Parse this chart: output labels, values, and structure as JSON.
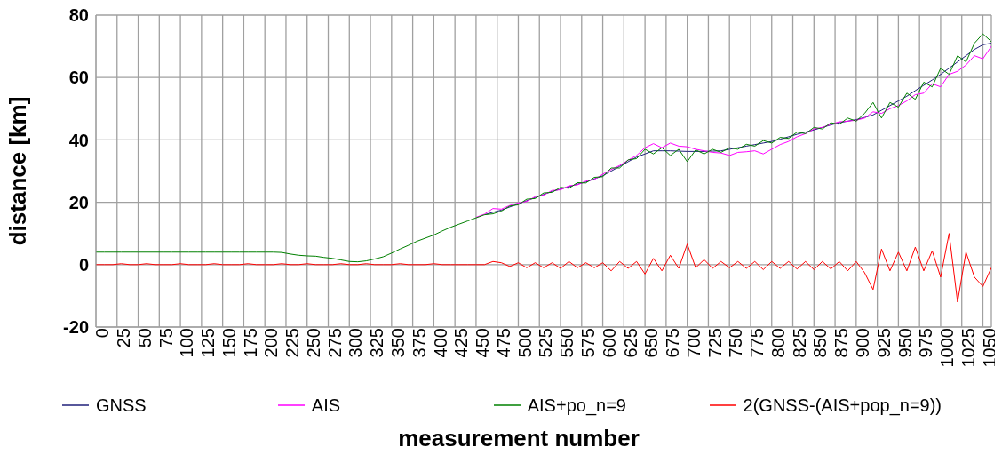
{
  "chart_data": {
    "type": "line",
    "xlabel": "measurement number",
    "ylabel": "distance [km]",
    "x": [
      0,
      10,
      20,
      30,
      40,
      50,
      60,
      70,
      80,
      90,
      100,
      110,
      120,
      130,
      140,
      150,
      160,
      170,
      180,
      190,
      200,
      210,
      220,
      230,
      240,
      250,
      260,
      270,
      280,
      290,
      300,
      310,
      320,
      330,
      340,
      350,
      360,
      370,
      380,
      390,
      400,
      410,
      420,
      430,
      440,
      450,
      460,
      470,
      480,
      490,
      500,
      510,
      520,
      530,
      540,
      550,
      560,
      570,
      580,
      590,
      600,
      610,
      620,
      630,
      640,
      650,
      660,
      670,
      680,
      690,
      700,
      710,
      720,
      730,
      740,
      750,
      760,
      770,
      780,
      790,
      800,
      810,
      820,
      830,
      840,
      850,
      860,
      870,
      880,
      890,
      900,
      910,
      920,
      930,
      940,
      950,
      960,
      970,
      980,
      990,
      1000,
      1010,
      1020,
      1030,
      1040,
      1050,
      1060
    ],
    "series": [
      {
        "name": "GNSS",
        "color": "#1f1f7a",
        "values": [
          null,
          null,
          null,
          null,
          null,
          null,
          null,
          null,
          null,
          null,
          null,
          null,
          null,
          null,
          null,
          null,
          null,
          null,
          null,
          null,
          null,
          null,
          null,
          null,
          null,
          null,
          null,
          null,
          null,
          null,
          null,
          null,
          null,
          null,
          null,
          null,
          null,
          null,
          null,
          null,
          null,
          null,
          null,
          null,
          null,
          null,
          16,
          16.8,
          17.5,
          18.5,
          19.5,
          20.5,
          21.5,
          22.5,
          23.5,
          24.2,
          25,
          25.8,
          26.5,
          27.5,
          28.5,
          30,
          31.5,
          33,
          34.5,
          35.5,
          36.5,
          36.5,
          36.5,
          36.4,
          36.3,
          36.3,
          36.3,
          36.4,
          36.5,
          37,
          37.5,
          38,
          38.5,
          39,
          39.5,
          40.2,
          41,
          41.8,
          42.5,
          43.2,
          44,
          44.8,
          45.5,
          46,
          46.5,
          47.2,
          48,
          49.5,
          51,
          52.5,
          54,
          55.8,
          57.5,
          59.2,
          61,
          63,
          65,
          67,
          69,
          70.5,
          71
        ]
      },
      {
        "name": "AIS",
        "color": "#ff00ff",
        "values": [
          null,
          null,
          null,
          null,
          null,
          null,
          null,
          null,
          null,
          null,
          null,
          null,
          null,
          null,
          null,
          null,
          null,
          null,
          null,
          null,
          null,
          null,
          null,
          null,
          null,
          null,
          null,
          null,
          null,
          null,
          null,
          null,
          null,
          null,
          null,
          null,
          null,
          null,
          null,
          null,
          null,
          null,
          null,
          null,
          null,
          15.2,
          16.2,
          18,
          17.8,
          19,
          19.8,
          20.3,
          21.8,
          22.3,
          23.8,
          24,
          25.3,
          25.6,
          26.8,
          27.3,
          29,
          30.5,
          31.8,
          33.5,
          35,
          37.5,
          38.8,
          37.5,
          39,
          38,
          37.8,
          37,
          36.5,
          36,
          35.8,
          35,
          36,
          36.2,
          36.5,
          35.5,
          37,
          38.5,
          39.5,
          41,
          42,
          43.5,
          44,
          45,
          45.8,
          46,
          46.3,
          47,
          49,
          48.5,
          50,
          51,
          52.5,
          54.5,
          55,
          58,
          57,
          61,
          62,
          64,
          67,
          66,
          70
        ]
      },
      {
        "name": "AIS+po_n=9",
        "color": "#008000",
        "values": [
          4,
          4,
          4,
          4,
          4,
          4,
          4,
          4,
          4,
          4,
          4,
          4,
          4,
          4,
          4,
          4,
          4,
          4,
          4,
          4,
          4,
          4,
          3.9,
          3.4,
          3,
          2.8,
          2.7,
          2.3,
          2,
          1.5,
          1,
          0.9,
          1.2,
          1.8,
          2.5,
          3.7,
          5,
          6.2,
          7.5,
          8.5,
          9.5,
          10.8,
          12,
          13,
          14,
          15,
          16,
          16.3,
          17.2,
          18.8,
          19.2,
          21,
          21.2,
          23,
          23.2,
          24.8,
          24.5,
          26.3,
          26.2,
          28,
          28.2,
          31,
          31,
          33.6,
          34,
          37,
          35.5,
          37.5,
          35,
          37,
          33,
          36.8,
          35.5,
          37,
          36,
          37.5,
          37,
          38.6,
          38,
          39.8,
          39,
          40.8,
          40.5,
          42.5,
          42,
          44,
          43.5,
          45.5,
          45,
          47,
          46,
          48.5,
          52,
          47,
          52,
          50.5,
          55,
          53,
          58.5,
          57,
          63,
          61,
          67,
          65,
          71,
          74,
          71.5
        ]
      },
      {
        "name": "2(GNSS-(AIS+pop_n=9))",
        "color": "#ff0000",
        "values": [
          0,
          0,
          0,
          0.3,
          0,
          0,
          0.3,
          0,
          0,
          0,
          0.3,
          0,
          0,
          0,
          0.3,
          0,
          0,
          0,
          0.3,
          0,
          0,
          0,
          0.3,
          0,
          0,
          0.3,
          0,
          0,
          0,
          0.3,
          0,
          0,
          0.3,
          0,
          0,
          0,
          0.3,
          0,
          0,
          0,
          0.3,
          0,
          0,
          0,
          0,
          0,
          0,
          1,
          0.6,
          -0.6,
          0.6,
          -1,
          0.6,
          -1,
          0.6,
          -1.2,
          1,
          -1,
          0.6,
          -1,
          0.6,
          -2,
          1,
          -1.2,
          1,
          -3,
          2,
          -2,
          3,
          -1.2,
          6.6,
          -1,
          1.6,
          -1.2,
          1,
          -1,
          1,
          -1.2,
          1,
          -1.6,
          1,
          -1.2,
          1,
          -1.4,
          1,
          -1.6,
          1,
          -1.4,
          1,
          -2,
          1,
          -2.6,
          -8,
          5,
          -2,
          4,
          -2,
          5.6,
          -2,
          4.4,
          -4,
          10,
          -12,
          4,
          -4,
          -7,
          -1
        ]
      }
    ],
    "xlim": [
      0,
      1060
    ],
    "xticks": [
      0,
      25,
      50,
      75,
      100,
      125,
      150,
      175,
      200,
      225,
      250,
      275,
      300,
      325,
      350,
      375,
      400,
      425,
      450,
      475,
      500,
      525,
      550,
      575,
      600,
      625,
      650,
      675,
      700,
      725,
      750,
      775,
      800,
      825,
      850,
      875,
      900,
      925,
      950,
      975,
      1000,
      1025,
      1050
    ],
    "ylim": [
      -20,
      80
    ],
    "yticks": [
      -20,
      0,
      20,
      40,
      60,
      80
    ],
    "grid": true,
    "legend": "bottom",
    "marker": "none",
    "line_style": "solid"
  }
}
